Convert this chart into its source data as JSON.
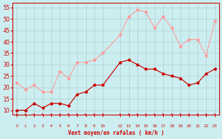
{
  "x_labels": [
    0,
    1,
    2,
    3,
    4,
    5,
    6,
    7,
    8,
    9,
    10,
    12,
    13,
    14,
    15,
    16,
    17,
    18,
    19,
    20,
    21,
    22,
    23
  ],
  "mean_wind": [
    10,
    10,
    13,
    11,
    13,
    13,
    12,
    17,
    18,
    21,
    21,
    31,
    32,
    30,
    28,
    28,
    26,
    25,
    24,
    21,
    22,
    26,
    28
  ],
  "gust_wind": [
    22,
    19,
    21,
    18,
    18,
    27,
    24,
    31,
    31,
    32,
    35,
    43,
    51,
    54,
    53,
    46,
    51,
    46,
    38,
    41,
    41,
    34,
    49
  ],
  "xlabel": "Vent moyen/en rafales ( km/h )",
  "yticks": [
    10,
    15,
    20,
    25,
    30,
    35,
    40,
    45,
    50,
    55
  ],
  "xticks": [
    0,
    1,
    2,
    3,
    4,
    5,
    6,
    7,
    8,
    9,
    10,
    12,
    13,
    14,
    15,
    16,
    17,
    18,
    19,
    20,
    21,
    22,
    23
  ],
  "bg_color": "#cceef0",
  "grid_color": "#aacccc",
  "mean_color": "#cc0000",
  "gust_color": "#ff9999",
  "xlabel_color": "#cc0000",
  "tick_color": "#cc0000",
  "ylim": [
    8,
    57
  ],
  "xlim": [
    -0.5,
    23.5
  ]
}
